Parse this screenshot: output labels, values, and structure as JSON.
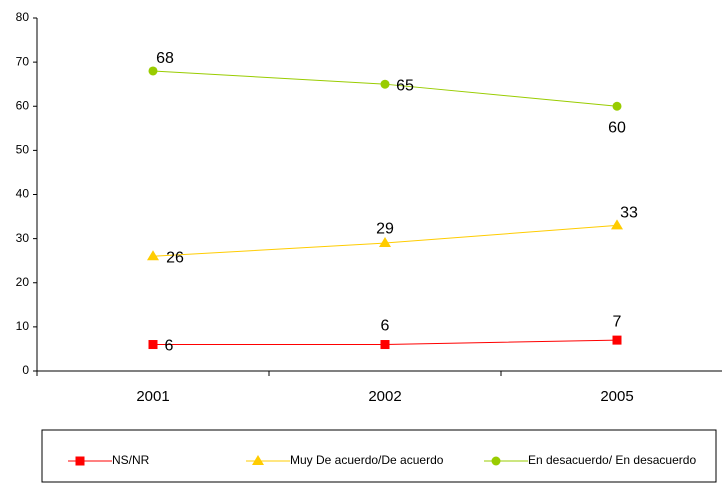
{
  "chart_data": {
    "type": "line",
    "categories": [
      "2001",
      "2002",
      "2005"
    ],
    "series": [
      {
        "name": "NS/NR",
        "color": "#ff0000",
        "marker": "square",
        "values": [
          6,
          6,
          7
        ]
      },
      {
        "name": "Muy De acuerdo/De acuerdo",
        "color": "#ffcc00",
        "marker": "triangle",
        "values": [
          26,
          29,
          33
        ]
      },
      {
        "name": "En desacuerdo/ En desacuerdo",
        "color": "#99cc00",
        "marker": "circle",
        "values": [
          68,
          65,
          60
        ]
      }
    ],
    "ylim": [
      0,
      80
    ],
    "yticks": [
      0,
      10,
      20,
      30,
      40,
      50,
      60,
      70,
      80
    ],
    "grid": false,
    "legend": "bottom"
  }
}
